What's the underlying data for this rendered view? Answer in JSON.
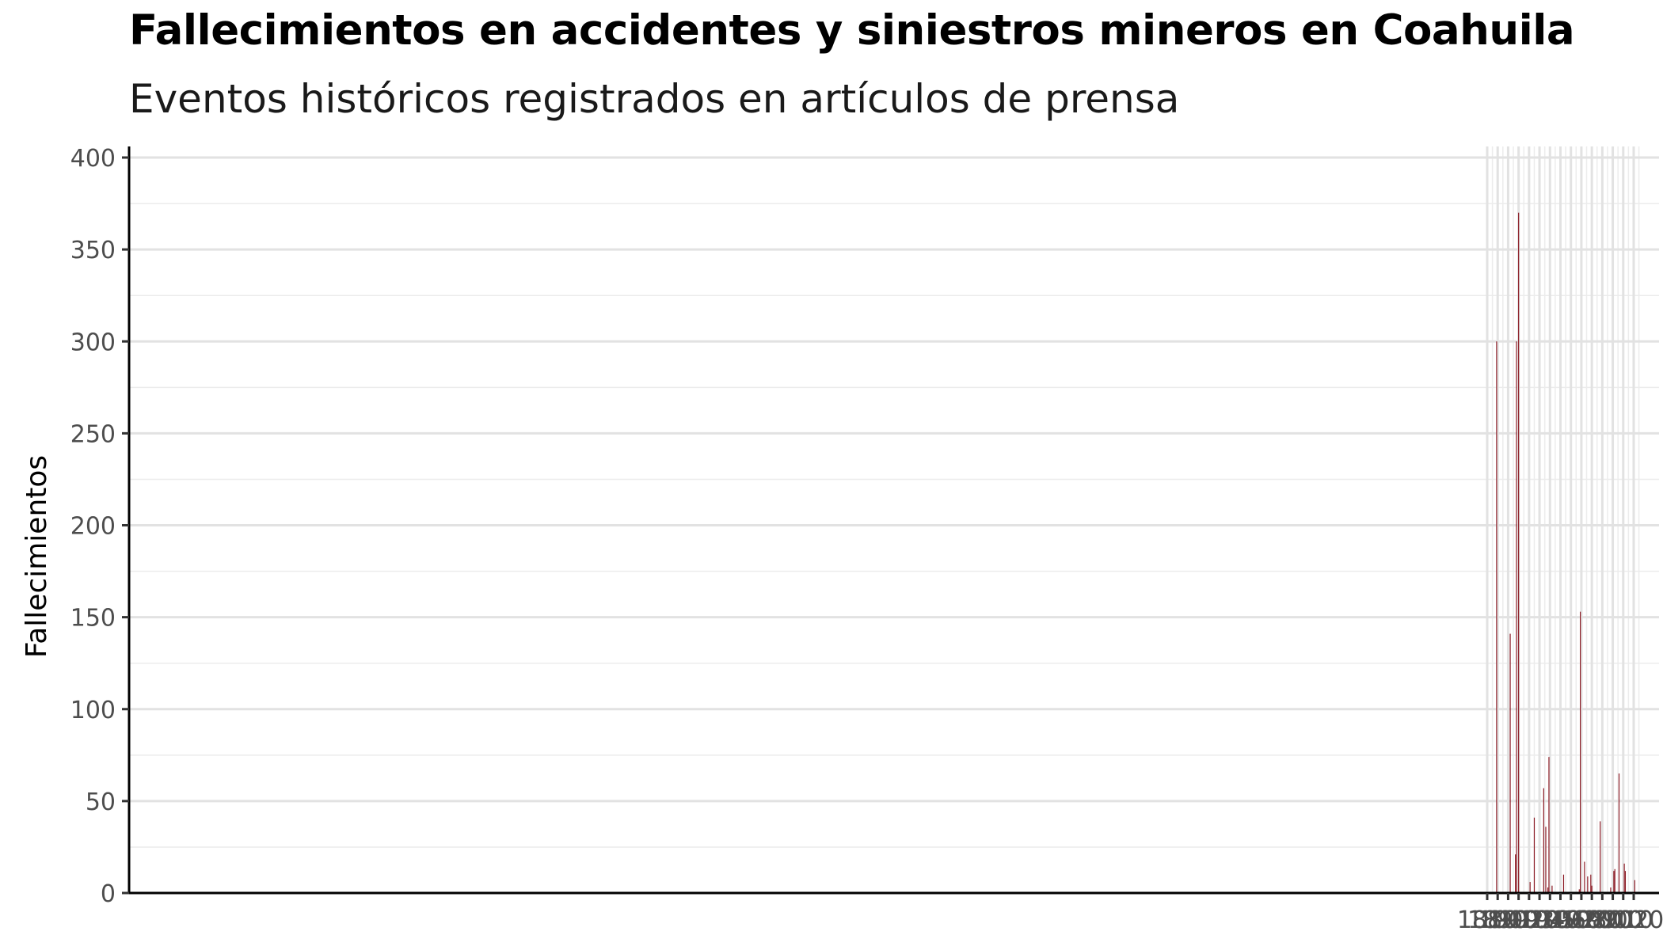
{
  "title": "Fallecimientos en accidentes y siniestros mineros en Coahuila",
  "subtitle": "Eventos históricos registrados en artículos de prensa",
  "chart_data": {
    "type": "bar",
    "title": "Fallecimientos en accidentes y siniestros mineros en Coahuila",
    "subtitle": "Eventos históricos registrados en artículos de prensa",
    "xlabel": "",
    "ylabel": "Fallecimientos",
    "xlim": [
      1877,
      2035
    ],
    "ylim": [
      0,
      400
    ],
    "x_ticks": [
      1880,
      1890,
      1900,
      1910,
      1920,
      1930,
      1940,
      1950,
      1960,
      1970,
      1980,
      1990,
      2000,
      2010,
      2020
    ],
    "y_ticks": [
      0,
      50,
      100,
      150,
      200,
      250,
      300,
      350,
      400
    ],
    "grid": true,
    "bar_color": "#8b1a24",
    "x": [
      1889,
      1902,
      1907,
      1908,
      1910,
      1921,
      1925,
      1934,
      1936,
      1938,
      1939,
      1942,
      1953,
      1968,
      1969,
      1973,
      1976,
      1979,
      1980,
      1988,
      1998,
      2001,
      2002,
      2006,
      2011,
      2012,
      2021
    ],
    "values": [
      300,
      141,
      21,
      300,
      370,
      6,
      41,
      57,
      36,
      3,
      74,
      4,
      10,
      2,
      153,
      17,
      9,
      10,
      4,
      39,
      3,
      12,
      13,
      65,
      16,
      12,
      7
    ]
  }
}
